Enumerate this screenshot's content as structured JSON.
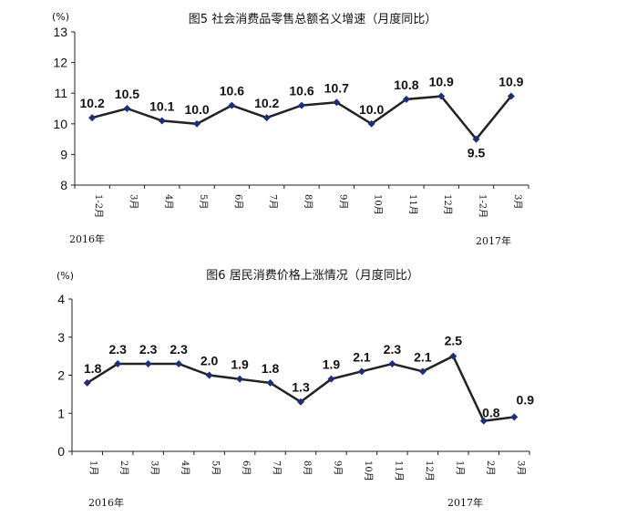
{
  "chart_data": [
    {
      "type": "line",
      "title": "图5 社会消费品零售总额名义增速（月度同比）",
      "unit": "(%)",
      "ylim": [
        8,
        13
      ],
      "yticks": [
        "8",
        "9",
        "10",
        "11",
        "12",
        "13"
      ],
      "categories": [
        "1-2月",
        "3月",
        "4月",
        "5月",
        "6月",
        "7月",
        "8月",
        "9月",
        "10月",
        "11月",
        "12月",
        "1-2月",
        "3月"
      ],
      "values": [
        10.2,
        10.5,
        10.1,
        10.0,
        10.6,
        10.2,
        10.6,
        10.7,
        10.0,
        10.8,
        10.9,
        9.5,
        10.9
      ],
      "value_labels": [
        "10.2",
        "10.5",
        "10.1",
        "10.0",
        "10.6",
        "10.2",
        "10.6",
        "10.7",
        "10.0",
        "10.8",
        "10.9",
        "9.5",
        "10.9"
      ],
      "year_labels": [
        "2016年",
        "2017年"
      ],
      "color": "#1f2e7a",
      "grid": false
    },
    {
      "type": "line",
      "title": "图6 居民消费价格上涨情况（月度同比）",
      "unit": "(%)",
      "ylim": [
        0,
        4
      ],
      "yticks": [
        "0",
        "1",
        "2",
        "3",
        "4"
      ],
      "categories": [
        "1月",
        "2月",
        "3月",
        "4月",
        "5月",
        "6月",
        "7月",
        "8月",
        "9月",
        "10月",
        "11月",
        "12月",
        "1月",
        "2月",
        "3月"
      ],
      "values": [
        1.8,
        2.3,
        2.3,
        2.3,
        2.0,
        1.9,
        1.8,
        1.3,
        1.9,
        2.1,
        2.3,
        2.1,
        2.5,
        0.8,
        0.9
      ],
      "value_labels": [
        "1.8",
        "2.3",
        "2.3",
        "2.3",
        "2.0",
        "1.9",
        "1.8",
        "1.3",
        "1.9",
        "2.1",
        "2.3",
        "2.1",
        "2.5",
        "0.8",
        "0.9"
      ],
      "year_labels": [
        "2016年",
        "2017年"
      ],
      "color": "#1f2e7a",
      "grid": false
    }
  ]
}
